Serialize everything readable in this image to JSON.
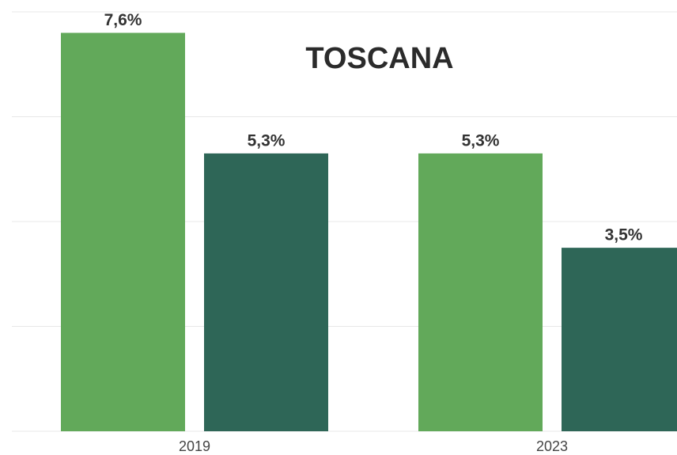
{
  "chart_data": {
    "type": "bar",
    "title": "TOSCANA",
    "categories": [
      "2019",
      "2023"
    ],
    "series": [
      {
        "color": "#62a95a",
        "values": [
          7.6,
          5.3
        ],
        "value_labels": [
          "7,6%",
          "5,3%"
        ]
      },
      {
        "color": "#2e6657",
        "values": [
          5.3,
          3.5
        ],
        "value_labels": [
          "5,3%",
          "3,5%"
        ]
      }
    ],
    "ylim": [
      0,
      8
    ],
    "yticks": [
      0,
      2,
      4,
      6,
      8
    ],
    "grid": true
  }
}
